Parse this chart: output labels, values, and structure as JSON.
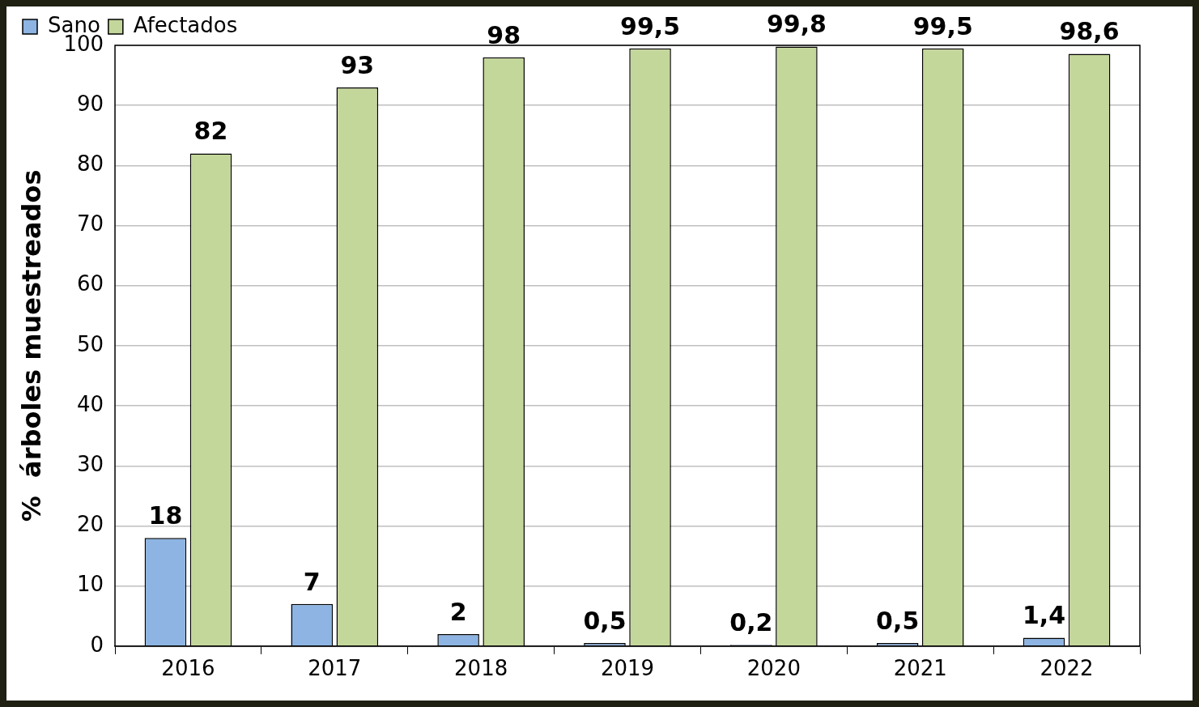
{
  "chart_data": {
    "type": "bar",
    "ylabel": "%  árboles muestreados",
    "categories": [
      "2016",
      "2017",
      "2018",
      "2019",
      "2020",
      "2021",
      "2022"
    ],
    "series": [
      {
        "name": "Sano",
        "color": "#8db4e2",
        "values": [
          18,
          7,
          2,
          0.5,
          0.2,
          0.5,
          1.4
        ],
        "value_labels": [
          "18",
          "7",
          "2",
          "0,5",
          "0,2",
          "0,5",
          "1,4"
        ]
      },
      {
        "name": "Afectados",
        "color": "#c4d79b",
        "values": [
          82,
          93,
          98,
          99.5,
          99.8,
          99.5,
          98.6
        ],
        "value_labels": [
          "82",
          "93",
          "98",
          "99,5",
          "99,8",
          "99,5",
          "98,6"
        ]
      }
    ],
    "ylim": [
      0,
      100
    ],
    "yticks": [
      0,
      10,
      20,
      30,
      40,
      50,
      60,
      70,
      80,
      90,
      100
    ],
    "grid": "y",
    "legend": "top left"
  }
}
